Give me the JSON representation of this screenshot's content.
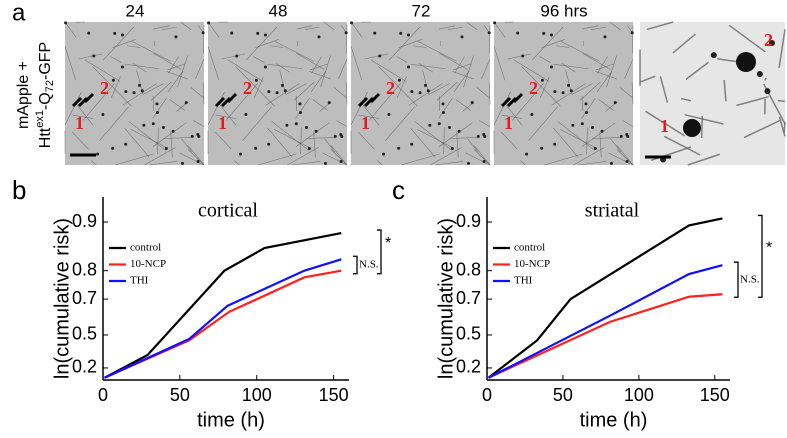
{
  "panel_labels": [
    "a",
    "b",
    "c"
  ],
  "panel_a": {
    "ylabel_line1": "mApple +",
    "ylabel_line2": [
      "Htt",
      "ex1",
      "-Q",
      "72",
      "-GFP"
    ],
    "frames": [
      {
        "label": "24",
        "markers": [
          "1",
          "2"
        ]
      },
      {
        "label": "48",
        "markers": [
          "1",
          "2"
        ]
      },
      {
        "label": "72",
        "markers": [
          "1",
          "2"
        ]
      },
      {
        "label": "96 hrs",
        "markers": [
          "1",
          "2"
        ]
      }
    ],
    "zoom_markers": [
      "1",
      "2"
    ]
  },
  "chart_data": [
    {
      "type": "line",
      "title": "cortical",
      "xlabel": "time (h)",
      "ylabel": "ln(cumulative risk)",
      "xlim": [
        0,
        160
      ],
      "xticks": [
        0,
        50,
        100,
        150
      ],
      "ylim": [
        0.05,
        0.93
      ],
      "yticks": [
        0.2,
        0.5,
        0.7,
        0.8,
        0.9
      ],
      "yscale": "log-survival",
      "legend": "upper left",
      "series": [
        {
          "name": "control",
          "color": "#000000",
          "x": [
            1,
            29,
            79,
            105,
            155
          ],
          "values": [
            0.08,
            0.335,
            0.8,
            0.855,
            0.883
          ]
        },
        {
          "name": "10-NCP",
          "color": "#ff2020",
          "x": [
            1,
            56,
            82,
            131,
            155
          ],
          "values": [
            0.08,
            0.46,
            0.64,
            0.78,
            0.8
          ]
        },
        {
          "name": "THI",
          "color": "#1010ff",
          "x": [
            1,
            56,
            81,
            131,
            155
          ],
          "values": [
            0.08,
            0.47,
            0.67,
            0.8,
            0.83
          ]
        }
      ],
      "annotations": [
        "N.S.",
        "*"
      ]
    },
    {
      "type": "line",
      "title": "striatal",
      "xlabel": "time (h)",
      "ylabel": "ln(cumulative risk)",
      "xlim": [
        0,
        160
      ],
      "xticks": [
        0,
        50,
        100,
        150
      ],
      "ylim": [
        0.05,
        0.93
      ],
      "yticks": [
        0.2,
        0.5,
        0.7,
        0.8,
        0.9
      ],
      "yscale": "log-survival",
      "legend": "upper left",
      "series": [
        {
          "name": "control",
          "color": "#000000",
          "x": [
            1,
            33,
            55,
            133,
            155
          ],
          "values": [
            0.08,
            0.46,
            0.7,
            0.895,
            0.905
          ]
        },
        {
          "name": "10-NCP",
          "color": "#ff2020",
          "x": [
            1,
            81,
            133,
            155
          ],
          "values": [
            0.08,
            0.585,
            0.71,
            0.72
          ]
        },
        {
          "name": "THI",
          "color": "#1010ff",
          "x": [
            1,
            81,
            133,
            155
          ],
          "values": [
            0.08,
            0.62,
            0.79,
            0.815
          ]
        }
      ],
      "annotations": [
        "N.S.",
        "*"
      ]
    }
  ]
}
